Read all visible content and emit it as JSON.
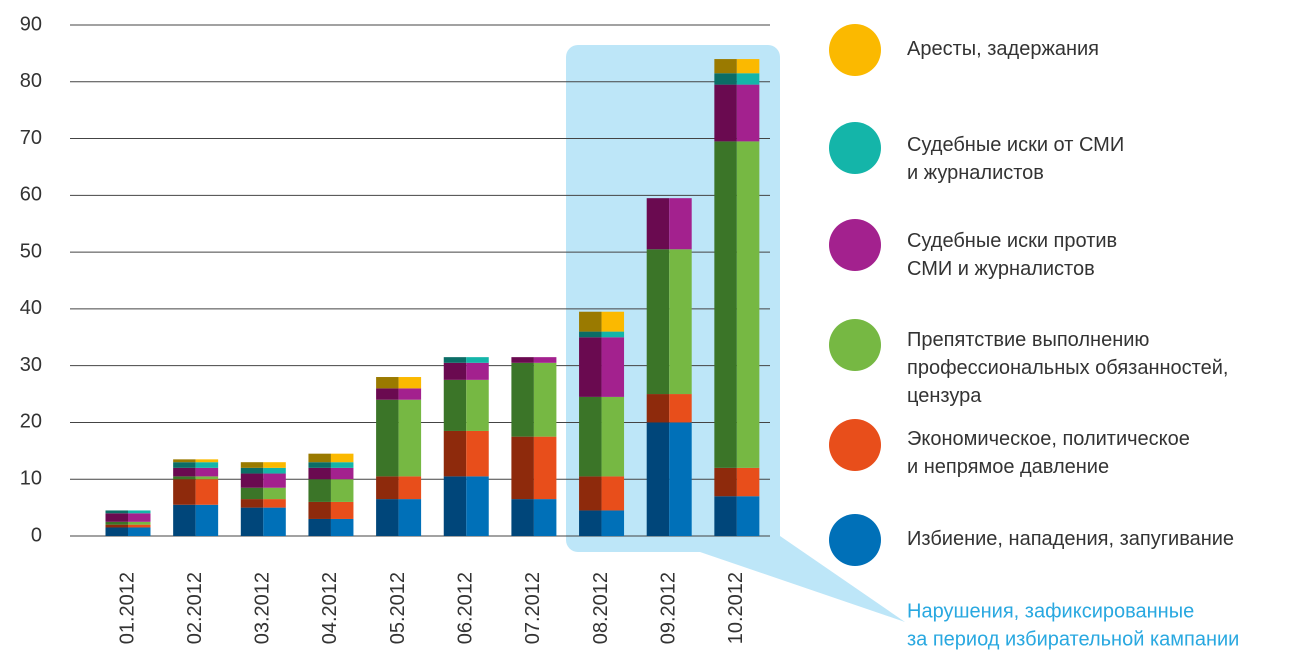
{
  "chart_data": {
    "type": "stacked_bar",
    "categories": [
      "01.2012",
      "02.2012",
      "03.2012",
      "04.2012",
      "05.2012",
      "06.2012",
      "07.2012",
      "08.2012",
      "09.2012",
      "10.2012"
    ],
    "series": [
      {
        "name": "Избиение, нападения, запугивание",
        "color": "#0070b8",
        "shade": "#00467a",
        "values": [
          1.5,
          5.5,
          5,
          3,
          6.5,
          10.5,
          6.5,
          4.5,
          20,
          7
        ]
      },
      {
        "name": "Экономическое, политическое\nи непрямое давление",
        "color": "#e84e1b",
        "shade": "#8e2a0c",
        "values": [
          0.5,
          4.5,
          1.5,
          3,
          4,
          8,
          11,
          6,
          5,
          5
        ]
      },
      {
        "name": "Препятствие выполнению\nпрофессиональных обязанностей,\nцензура",
        "color": "#76b843",
        "shade": "#3b7528",
        "values": [
          0.5,
          0.5,
          2,
          4,
          13.5,
          9,
          13,
          14,
          25.5,
          57.5
        ]
      },
      {
        "name": "Судебные иски против\nСМИ и журналистов",
        "color": "#a3218e",
        "shade": "#6a0a50",
        "values": [
          1.5,
          1.5,
          2.5,
          2,
          2,
          3,
          1,
          10.5,
          9,
          10
        ]
      },
      {
        "name": "Судебные иски от СМИ\nи журналистов",
        "color": "#14b5a9",
        "shade": "#0b6d66",
        "values": [
          0.5,
          1,
          1,
          1,
          0,
          1,
          0,
          1,
          0,
          2
        ]
      },
      {
        "name": "Аресты, задержания",
        "color": "#fbb900",
        "shade": "#9a7a00",
        "values": [
          0,
          0.5,
          1,
          1.5,
          2,
          0,
          0,
          3.5,
          0,
          2.5
        ]
      }
    ],
    "ylim": [
      0,
      90
    ],
    "yticks": [
      0,
      10,
      20,
      30,
      40,
      50,
      60,
      70,
      80,
      90
    ],
    "grid": true,
    "annotation": [
      "Нарушения, зафиксированные",
      "за период избирательной кампании"
    ]
  }
}
